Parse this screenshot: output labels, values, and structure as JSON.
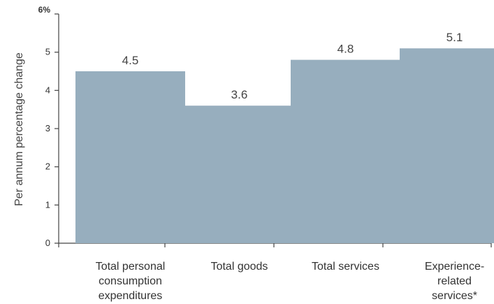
{
  "chart_data": {
    "type": "bar",
    "categories": [
      [
        "Total personal",
        "consumption",
        "expenditures"
      ],
      [
        "Total goods"
      ],
      [
        "Total services"
      ],
      [
        "Experience-",
        "related",
        "services*"
      ]
    ],
    "values": [
      4.5,
      3.6,
      4.8,
      5.1
    ],
    "data_labels": [
      "4.5",
      "3.6",
      "4.8",
      "5.1"
    ],
    "title": "",
    "xlabel": "",
    "ylabel": "Per annum percentage change",
    "ylim": [
      0,
      6
    ],
    "yticks": [
      "0",
      "1",
      "2",
      "3",
      "4",
      "5",
      "6%"
    ],
    "grid": false,
    "bar_color": "#97AEBE",
    "axis_color": "#444444"
  }
}
